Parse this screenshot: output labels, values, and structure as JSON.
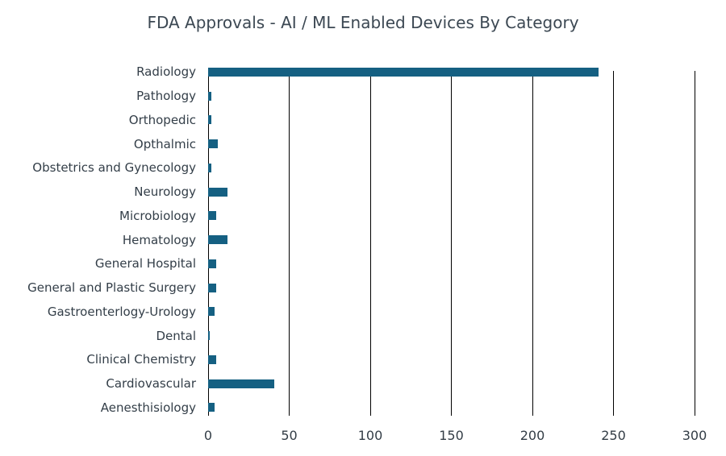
{
  "chart_data": {
    "type": "bar",
    "orientation": "horizontal",
    "title": "FDA Approvals - AI / ML Enabled Devices By Category",
    "categories": [
      "Radiology",
      "Pathology",
      "Orthopedic",
      "Opthalmic",
      "Obstetrics and Gynecology",
      "Neurology",
      "Microbiology",
      "Hematology",
      "General Hospital",
      "General and Plastic Surgery",
      "Gastroenterlogy-Urology",
      "Dental",
      "Clinical Chemistry",
      "Cardiovascular",
      "Aenesthisiology"
    ],
    "values": [
      241,
      2,
      2,
      6,
      2,
      12,
      5,
      12,
      5,
      5,
      4,
      1,
      5,
      41,
      4
    ],
    "xlabel": "",
    "ylabel": "",
    "xlim": [
      0,
      300
    ],
    "xticks": [
      0,
      50,
      100,
      150,
      200,
      250,
      300
    ],
    "grid": "vertical-only",
    "legend": false,
    "colors": {
      "bar": "#156082",
      "gridline": "#000000",
      "title_text": "#3c4853",
      "category_text": "#333e48",
      "tick_text": "#333d46",
      "background": "#ffffff"
    }
  }
}
